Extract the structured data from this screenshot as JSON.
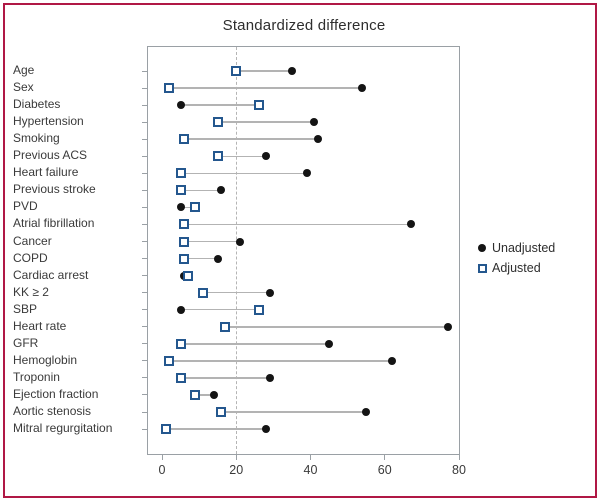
{
  "figure": {
    "background_color": "#ffffff",
    "border_color": "#b01845",
    "frame_color": "#9aa0a5",
    "connector_color": "#b3b3b3",
    "reference_line_color": "#b5b5b5"
  },
  "chart_data": {
    "type": "scatter",
    "subtype": "dumbbell-dot-plot",
    "title": "Standardized difference",
    "xlabel": "",
    "ylabel": "",
    "xlim": [
      0,
      80
    ],
    "x_ticks": [
      0,
      20,
      40,
      60,
      80
    ],
    "x_tick_labels": [
      "0",
      "20",
      "40",
      "60",
      "80"
    ],
    "reference_line_x": 20,
    "grid": false,
    "legend_position": "right-middle",
    "categories": [
      "Age",
      "Sex",
      "Diabetes",
      "Hypertension",
      "Smoking",
      "Previous ACS",
      "Heart failure",
      "Previous stroke",
      "PVD",
      "Atrial fibrillation",
      "Cancer",
      "COPD",
      "Cardiac arrest",
      "KK ≥ 2",
      "SBP",
      "Heart rate",
      "GFR",
      "Hemoglobin",
      "Troponin",
      "Ejection fraction",
      "Aortic stenosis",
      "Mitral regurgitation"
    ],
    "series": [
      {
        "name": "Unadjusted",
        "marker": "filled-black-circle",
        "color": "#141414",
        "values": [
          35,
          54,
          5,
          41,
          42,
          28,
          39,
          16,
          5,
          67,
          21,
          15,
          6,
          29,
          5,
          77,
          45,
          62,
          29,
          14,
          55,
          28
        ]
      },
      {
        "name": "Adjusted",
        "marker": "open-blue-square",
        "color": "#24578e",
        "values": [
          20,
          2,
          26,
          15,
          6,
          15,
          5,
          5,
          9,
          6,
          6,
          6,
          7,
          11,
          26,
          17,
          5,
          2,
          5,
          9,
          16,
          1
        ]
      }
    ]
  }
}
